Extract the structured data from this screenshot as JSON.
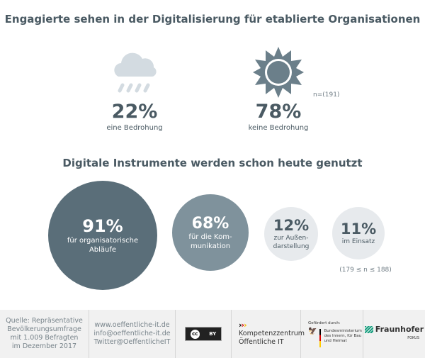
{
  "title1": "Engagierte sehen in der Digitalisierung für etablierte Organisationen",
  "threat": {
    "value": "22%",
    "label": "eine Bedrohung",
    "icon": "rain-cloud-icon"
  },
  "nothreat": {
    "value": "78%",
    "label": "keine Bedrohung",
    "icon": "sun-icon"
  },
  "n1": "n=(191)",
  "title2": "Digitale Instrumente werden schon heute genutzt",
  "bubbles": [
    {
      "value": "91%",
      "label1": "für organisatorische",
      "label2": "Abläufe",
      "share": 91
    },
    {
      "value": "68%",
      "label1": "für die Kom-",
      "label2": "munikation",
      "share": 68
    },
    {
      "value": "12%",
      "label1": "zur Außen-",
      "label2": "darstellung",
      "share": 12
    },
    {
      "value": "11%",
      "label1": "im Einsatz",
      "label2": "",
      "share": 11
    }
  ],
  "n2": "(179 ≤ n ≤ 188)",
  "footer": {
    "source": [
      "Quelle: Repräsentative",
      "Bevölkerungsumfrage",
      "mit 1.009 Befragten",
      "im Dezember 2017"
    ],
    "links": [
      "www.oeffentliche-it.de",
      "info@oeffentliche-it.de",
      "Twitter@OeffentlicheIT"
    ],
    "cc": {
      "cc": "cc",
      "by": "BY"
    },
    "kompetenz": [
      "Kompetenzzentrum",
      "Öffentliche IT"
    ],
    "funded_by": "Gefördert durch:",
    "ministry": [
      "Bundesministerium",
      "des Innern, für Bau",
      "und Heimat"
    ],
    "fraunhofer": "Fraunhofer",
    "fokus": "FOKUS"
  },
  "colors": {
    "dark": "#5a6e79",
    "mid": "#7f929c",
    "light": "#e7eaed",
    "cloud": "#d3dbe1"
  }
}
